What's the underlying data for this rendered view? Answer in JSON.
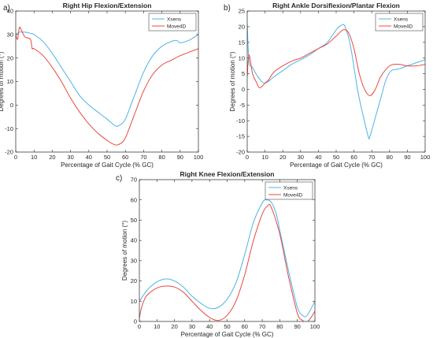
{
  "colors": {
    "xsens": "#4db3e6",
    "move4d": "#e8473f",
    "axis": "#262626"
  },
  "chart_data": [
    {
      "type": "line",
      "panel_label": "a)",
      "title": "Right Hip Flexion/Extension",
      "xlabel": "Percentage of Gait Cycle (% GC)",
      "ylabel": "Degrees of motion (°)",
      "xlim": [
        0,
        100
      ],
      "ylim": [
        -20,
        40
      ],
      "xticks": [
        0,
        10,
        20,
        30,
        40,
        50,
        60,
        70,
        80,
        90,
        100
      ],
      "yticks": [
        -20,
        -10,
        0,
        10,
        20,
        30,
        40
      ],
      "legend": "top-right",
      "series": [
        {
          "name": "Xsens",
          "color": "#4db3e6",
          "x": [
            0,
            2,
            5,
            8,
            10,
            15,
            20,
            25,
            30,
            35,
            40,
            45,
            50,
            53,
            55,
            57,
            60,
            65,
            70,
            75,
            80,
            85,
            88,
            90,
            93,
            96,
            100
          ],
          "y": [
            30,
            31,
            31,
            30.5,
            30,
            27,
            22,
            16,
            10,
            4,
            0,
            -3,
            -6,
            -8,
            -9,
            -8.5,
            -6,
            4,
            14,
            21,
            25,
            27,
            27.5,
            26.5,
            27,
            28,
            30
          ]
        },
        {
          "name": "Move4D",
          "color": "#e8473f",
          "x": [
            0,
            1,
            2,
            3,
            5,
            8,
            9,
            10,
            15,
            20,
            25,
            30,
            35,
            40,
            45,
            50,
            53,
            55,
            57,
            60,
            65,
            70,
            75,
            80,
            85,
            90,
            95,
            100
          ],
          "y": [
            30,
            28,
            33,
            32,
            29,
            28,
            24,
            24,
            21,
            16,
            10,
            3,
            -3,
            -8,
            -12,
            -15,
            -16.5,
            -17,
            -16.5,
            -14,
            -4,
            6,
            13,
            17,
            19,
            21,
            22.5,
            24
          ]
        }
      ]
    },
    {
      "type": "line",
      "panel_label": "b)",
      "title": "Right Ankle Dorsiflexion/Plantar Flexion",
      "xlabel": "Percentage of Gait Cycle (% GC)",
      "ylabel": "Degrees of motion (°)",
      "xlim": [
        0,
        100
      ],
      "ylim": [
        -20,
        25
      ],
      "xticks": [
        0,
        10,
        20,
        30,
        40,
        50,
        60,
        70,
        80,
        90,
        100
      ],
      "yticks": [
        -20,
        -15,
        -10,
        -5,
        0,
        5,
        10,
        15,
        20,
        25
      ],
      "legend": "top-right",
      "series": [
        {
          "name": "Xsens",
          "color": "#4db3e6",
          "x": [
            0,
            1,
            3,
            6,
            10,
            15,
            20,
            25,
            30,
            35,
            40,
            45,
            50,
            53,
            55,
            58,
            62,
            65,
            68,
            69,
            72,
            75,
            78,
            81,
            85,
            90,
            95,
            100
          ],
          "y": [
            21,
            9,
            7,
            4,
            2,
            4,
            6,
            8,
            9.5,
            11,
            13,
            15,
            19,
            20.5,
            20,
            14,
            0,
            -8,
            -15,
            -15,
            -9,
            -3,
            3,
            6,
            6.5,
            7.5,
            8.5,
            9.5
          ]
        },
        {
          "name": "Move4D",
          "color": "#e8473f",
          "x": [
            0,
            1,
            3,
            5,
            7,
            10,
            12,
            15,
            20,
            25,
            30,
            35,
            40,
            45,
            50,
            54,
            57,
            60,
            63,
            66,
            69,
            72,
            75,
            80,
            85,
            90,
            95,
            100
          ],
          "y": [
            4,
            11,
            5,
            2.5,
            0.5,
            2,
            3,
            5.5,
            7.5,
            9,
            10,
            11.5,
            13,
            14.5,
            17,
            19,
            18,
            13,
            5,
            0,
            -2,
            0,
            4,
            7.5,
            8,
            7.5,
            7.5,
            8
          ]
        }
      ]
    },
    {
      "type": "line",
      "panel_label": "c)",
      "title": "Right Knee Flexion/Extension",
      "xlabel": "Percentage of Gait Cycle (% GC)",
      "ylabel": "Degrees of motion (°)",
      "xlim": [
        0,
        100
      ],
      "ylim": [
        0,
        70
      ],
      "xticks": [
        0,
        10,
        20,
        30,
        40,
        50,
        60,
        70,
        80,
        90,
        100
      ],
      "yticks": [
        0,
        10,
        20,
        30,
        40,
        50,
        60,
        70
      ],
      "legend": "top-right",
      "series": [
        {
          "name": "Xsens",
          "color": "#4db3e6",
          "x": [
            0,
            5,
            10,
            15,
            20,
            25,
            30,
            35,
            40,
            45,
            50,
            55,
            60,
            65,
            70,
            72,
            75,
            78,
            80,
            85,
            90,
            93,
            95,
            97,
            100
          ],
          "y": [
            10,
            16,
            19.5,
            21,
            20,
            17,
            12.5,
            9,
            6.5,
            7,
            11,
            19,
            33,
            49,
            58.5,
            60,
            59,
            53,
            45,
            25,
            7,
            3,
            2.5,
            5,
            10
          ]
        },
        {
          "name": "Move4D",
          "color": "#e8473f",
          "x": [
            0,
            1,
            3,
            5,
            10,
            15,
            20,
            25,
            30,
            35,
            40,
            45,
            50,
            55,
            60,
            65,
            70,
            73,
            75,
            80,
            85,
            90,
            93,
            95,
            97,
            100
          ],
          "y": [
            1.5,
            6,
            11,
            13.5,
            16.5,
            17.5,
            17,
            14.5,
            10,
            5.5,
            2,
            0.5,
            3,
            10,
            23,
            40,
            53,
            57,
            56.5,
            43,
            22,
            4,
            0.5,
            -0.5,
            1,
            5
          ]
        }
      ]
    }
  ]
}
